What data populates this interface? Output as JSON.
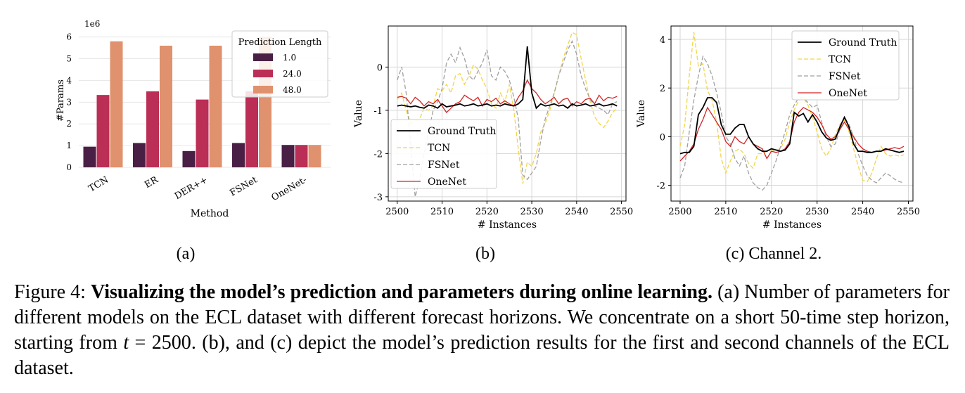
{
  "subfigure_labels": [
    "(a)",
    "(b)",
    "(c) Channel 2."
  ],
  "caption": {
    "figure_label": "Figure 4:",
    "bold_title": "Visualizing the model’s prediction and parameters during online learning.",
    "text_part1": "(a) Number of parameters for different models on the ECL dataset with different forecast horizons. We concentrate on a short 50-time step horizon, starting from",
    "math_var": "t",
    "math_eq": " = 2500",
    "text_part2": ". (b), and (c) depict the model’s prediction results for the first and second channels of the ECL dataset."
  },
  "chart_data": [
    {
      "type": "bar",
      "xlabel": "Method",
      "ylabel": "#Params",
      "y_multiplier_label": "1e6",
      "ylim": [
        0,
        6.15
      ],
      "yticks": [
        0,
        1,
        2,
        3,
        4,
        5,
        6
      ],
      "categories": [
        "TCN",
        "ER",
        "DER++",
        "FSNet",
        "OneNet-"
      ],
      "legend_title": "Prediction Length",
      "legend_position": "top-right",
      "grid": "horizontal",
      "series": [
        {
          "name": "1.0",
          "color": "#4a1f45",
          "values": [
            0.95,
            1.12,
            0.75,
            1.12,
            1.03
          ]
        },
        {
          "name": "24.0",
          "color": "#bb2e55",
          "values": [
            3.33,
            3.5,
            3.12,
            3.5,
            1.03
          ]
        },
        {
          "name": "48.0",
          "color": "#e0916d",
          "values": [
            5.8,
            5.6,
            5.6,
            6.0,
            1.03
          ]
        }
      ]
    },
    {
      "type": "line",
      "xlabel": "# Instances",
      "ylabel": "Value",
      "xlim": [
        2498,
        2551
      ],
      "ylim": [
        -3.1,
        0.95
      ],
      "xticks": [
        2500,
        2510,
        2520,
        2530,
        2540,
        2550
      ],
      "yticks": [
        -3,
        -2,
        -1,
        0
      ],
      "legend_position": "lower-left",
      "grid": "both",
      "x": [
        2500,
        2501,
        2502,
        2503,
        2504,
        2505,
        2506,
        2507,
        2508,
        2509,
        2510,
        2511,
        2512,
        2513,
        2514,
        2515,
        2516,
        2517,
        2518,
        2519,
        2520,
        2521,
        2522,
        2523,
        2524,
        2525,
        2526,
        2527,
        2528,
        2529,
        2530,
        2531,
        2532,
        2533,
        2534,
        2535,
        2536,
        2537,
        2538,
        2539,
        2540,
        2541,
        2542,
        2543,
        2544,
        2545,
        2546,
        2547,
        2548,
        2549
      ],
      "series": [
        {
          "name": "Ground Truth",
          "color": "#000000",
          "dash": "solid",
          "width": 1.8,
          "values": [
            -0.9,
            -0.88,
            -0.9,
            -0.92,
            -0.9,
            -0.93,
            -0.95,
            -0.88,
            -0.9,
            -0.95,
            -0.85,
            -0.92,
            -0.9,
            -0.88,
            -0.85,
            -0.9,
            -0.88,
            -0.85,
            -0.9,
            -0.88,
            -0.85,
            -0.9,
            -0.88,
            -0.9,
            -0.85,
            -0.88,
            -0.9,
            -0.85,
            -0.75,
            0.48,
            -0.6,
            -0.95,
            -0.85,
            -0.9,
            -0.88,
            -0.85,
            -0.9,
            -0.88,
            -0.95,
            -0.85,
            -0.9,
            -0.88,
            -0.85,
            -0.9,
            -0.88,
            -0.85,
            -0.9,
            -0.88,
            -0.85,
            -0.9
          ]
        },
        {
          "name": "TCN",
          "color": "#f2d54a",
          "dash": "dashed",
          "width": 1.3,
          "values": [
            -0.75,
            -0.6,
            -1.0,
            -1.3,
            -1.25,
            -1.2,
            -0.95,
            -1.0,
            -0.9,
            -0.5,
            -0.55,
            -0.4,
            -0.6,
            -0.2,
            -0.15,
            -0.4,
            -0.2,
            0.05,
            -0.05,
            -0.3,
            -0.5,
            -0.85,
            -0.95,
            -0.6,
            -0.8,
            -0.4,
            -1.0,
            -1.9,
            -2.7,
            -2.2,
            -2.3,
            -2.0,
            -1.5,
            -1.3,
            -1.0,
            -0.6,
            -0.2,
            0.2,
            0.5,
            0.8,
            0.75,
            0.2,
            -0.3,
            -0.8,
            -1.15,
            -1.3,
            -1.4,
            -1.25,
            -1.05,
            -0.95
          ]
        },
        {
          "name": "FSNet",
          "color": "#a0a0a0",
          "dash": "dashed",
          "width": 1.3,
          "values": [
            -0.3,
            0.0,
            -0.6,
            -1.8,
            -3.0,
            -2.6,
            -2.0,
            -1.5,
            -1.0,
            -0.8,
            -0.5,
            0.1,
            0.3,
            0.1,
            0.45,
            0.2,
            -0.2,
            -0.3,
            -0.1,
            0.1,
            0.4,
            -0.2,
            -0.3,
            0.0,
            -0.1,
            -0.3,
            -0.7,
            -1.2,
            -2.5,
            -2.6,
            -2.45,
            -2.3,
            -1.7,
            -1.2,
            -0.9,
            -0.6,
            -0.2,
            0.1,
            0.4,
            0.6,
            0.3,
            -0.2,
            -0.5,
            -0.75,
            -0.9,
            -0.95,
            -1.0,
            -1.1,
            -0.85,
            -0.8
          ]
        },
        {
          "name": "OneNet",
          "color": "#d02424",
          "dash": "solid",
          "width": 1.3,
          "values": [
            -0.7,
            -0.68,
            -0.72,
            -0.85,
            -0.7,
            -0.78,
            -0.9,
            -0.8,
            -0.85,
            -0.75,
            -0.9,
            -1.05,
            -0.95,
            -0.85,
            -0.8,
            -0.65,
            -0.72,
            -0.78,
            -0.7,
            -0.9,
            -0.75,
            -0.8,
            -0.72,
            -0.85,
            -0.78,
            -0.85,
            -0.9,
            -0.7,
            -0.55,
            -0.3,
            -0.5,
            -0.6,
            -0.75,
            -0.85,
            -0.78,
            -0.7,
            -0.85,
            -0.75,
            -0.72,
            -0.9,
            -0.8,
            -0.85,
            -0.75,
            -0.72,
            -0.85,
            -0.65,
            -0.78,
            -0.7,
            -0.72,
            -0.68
          ]
        }
      ]
    },
    {
      "type": "line",
      "xlabel": "# Instances",
      "ylabel": "Value",
      "xlim": [
        2498,
        2551
      ],
      "ylim": [
        -2.65,
        4.55
      ],
      "xticks": [
        2500,
        2510,
        2520,
        2530,
        2540,
        2550
      ],
      "yticks": [
        -2,
        0,
        2,
        4
      ],
      "legend_position": "top-right",
      "grid": "both",
      "x": [
        2500,
        2501,
        2502,
        2503,
        2504,
        2505,
        2506,
        2507,
        2508,
        2509,
        2510,
        2511,
        2512,
        2513,
        2514,
        2515,
        2516,
        2517,
        2518,
        2519,
        2520,
        2521,
        2522,
        2523,
        2524,
        2525,
        2526,
        2527,
        2528,
        2529,
        2530,
        2531,
        2532,
        2533,
        2534,
        2535,
        2536,
        2537,
        2538,
        2539,
        2540,
        2541,
        2542,
        2543,
        2544,
        2545,
        2546,
        2547,
        2548,
        2549
      ],
      "series": [
        {
          "name": "Ground Truth",
          "color": "#000000",
          "dash": "solid",
          "width": 1.8,
          "values": [
            -0.7,
            -0.65,
            -0.65,
            -0.4,
            0.9,
            1.2,
            1.6,
            1.6,
            1.4,
            0.5,
            0.1,
            0.1,
            0.35,
            0.5,
            0.5,
            0.0,
            -0.3,
            -0.5,
            -0.6,
            -0.6,
            -0.5,
            -0.55,
            -0.6,
            -0.55,
            -0.3,
            1.0,
            0.85,
            0.95,
            0.6,
            0.9,
            0.6,
            0.2,
            -0.05,
            -0.15,
            -0.1,
            0.4,
            0.8,
            0.4,
            -0.3,
            -0.6,
            -0.6,
            -0.65,
            -0.65,
            -0.6,
            -0.6,
            -0.5,
            -0.55,
            -0.6,
            -0.65,
            -0.6
          ]
        },
        {
          "name": "TCN",
          "color": "#f2d54a",
          "dash": "dashed",
          "width": 1.3,
          "values": [
            -0.4,
            0.5,
            2.5,
            4.3,
            2.9,
            3.0,
            1.9,
            1.5,
            0.6,
            -0.9,
            -1.5,
            -1.0,
            -0.6,
            -0.5,
            -0.7,
            -1.1,
            -1.3,
            -0.7,
            -0.7,
            -0.6,
            -0.6,
            -0.55,
            -0.5,
            -0.1,
            0.6,
            1.1,
            1.5,
            1.6,
            1.3,
            0.8,
            0.2,
            -0.5,
            -0.8,
            -0.5,
            0.1,
            0.5,
            0.7,
            0.2,
            -0.5,
            -1.2,
            -1.8,
            -1.85,
            -1.5,
            -0.9,
            -0.4,
            -0.7,
            -0.8,
            -0.75,
            -0.8,
            -0.75
          ]
        },
        {
          "name": "FSNet",
          "color": "#a0a0a0",
          "dash": "dashed",
          "width": 1.3,
          "values": [
            -1.7,
            -1.2,
            0.2,
            1.5,
            2.5,
            3.3,
            3.0,
            2.5,
            1.8,
            1.0,
            0.0,
            -0.3,
            -0.9,
            -1.2,
            -0.8,
            -1.5,
            -1.9,
            -2.1,
            -2.2,
            -2.0,
            -1.5,
            -1.0,
            -0.4,
            0.2,
            0.9,
            1.3,
            1.6,
            1.6,
            1.4,
            1.2,
            1.3,
            0.6,
            0.0,
            -0.4,
            -0.3,
            0.3,
            0.8,
            0.5,
            0.0,
            -0.7,
            -1.2,
            -1.6,
            -1.8,
            -1.9,
            -1.7,
            -1.5,
            -1.6,
            -1.75,
            -1.85,
            -1.9
          ]
        },
        {
          "name": "OneNet",
          "color": "#d02424",
          "dash": "solid",
          "width": 1.3,
          "values": [
            -1.0,
            -0.8,
            -0.6,
            -0.3,
            0.3,
            0.7,
            1.2,
            0.9,
            0.6,
            0.3,
            -0.2,
            -0.4,
            0.0,
            -0.2,
            -0.3,
            0.0,
            -0.3,
            -0.4,
            -0.5,
            -0.9,
            -0.6,
            -0.65,
            -0.6,
            -0.5,
            -0.2,
            0.6,
            1.0,
            1.2,
            1.1,
            1.0,
            0.8,
            0.5,
            0.1,
            -0.1,
            0.0,
            0.3,
            0.6,
            0.3,
            0.0,
            -0.3,
            -0.5,
            -0.6,
            -0.65,
            -0.6,
            -0.6,
            -0.55,
            -0.5,
            -0.45,
            -0.5,
            -0.4
          ]
        }
      ]
    }
  ]
}
